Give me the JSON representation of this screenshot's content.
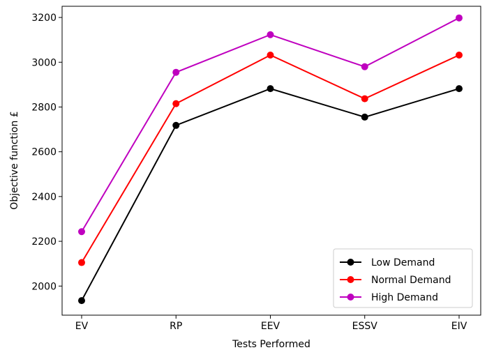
{
  "chart_data": {
    "type": "line",
    "title": "",
    "xlabel": "Tests Performed",
    "ylabel": "Objective function £",
    "categories": [
      "EV",
      "RP",
      "EEV",
      "ESSV",
      "EIV"
    ],
    "ylim": [
      1870,
      3250
    ],
    "yticks": [
      2000,
      2200,
      2400,
      2600,
      2800,
      3000,
      3200
    ],
    "grid": false,
    "legend_position": "lower-right",
    "series": [
      {
        "name": "Low Demand",
        "color": "#000000",
        "values": [
          1935,
          2718,
          2882,
          2755,
          2882
        ]
      },
      {
        "name": "Normal Demand",
        "color": "#ff0000",
        "values": [
          2105,
          2815,
          3032,
          2837,
          3032
        ]
      },
      {
        "name": "High Demand",
        "color": "#bf00bf",
        "values": [
          2243,
          2955,
          3123,
          2980,
          3198
        ]
      }
    ]
  }
}
